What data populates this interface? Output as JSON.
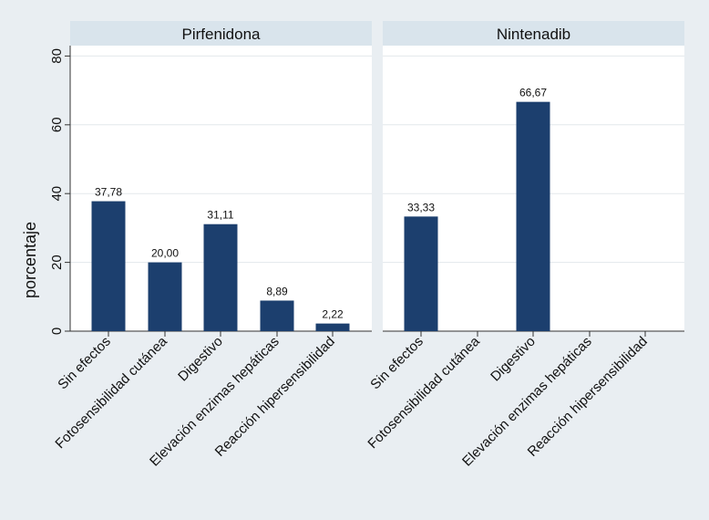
{
  "chart_data": {
    "type": "bar",
    "ylabel": "porcentaje",
    "ylim": [
      0,
      85
    ],
    "yticks": [
      0,
      20,
      40,
      60,
      80
    ],
    "grid": true,
    "bar_color": "#1c3f6e",
    "panel_header_color": "#d9e4ec",
    "categories": [
      "Sin efectos",
      "Fotosensibilidad cutánea",
      "Digestivo",
      "Elevación enzimas hepáticas",
      "Reacción hipersensibilidad"
    ],
    "panels": [
      {
        "title": "Pirfenidona",
        "values": [
          37.78,
          20.0,
          31.11,
          8.89,
          2.22
        ],
        "labels": [
          "37,78",
          "20,00",
          "31,11",
          "8,89",
          "2,22"
        ]
      },
      {
        "title": "Nintenadib",
        "values": [
          33.33,
          0,
          66.67,
          0,
          0
        ],
        "labels": [
          "33,33",
          "",
          "66,67",
          "",
          ""
        ]
      }
    ]
  }
}
